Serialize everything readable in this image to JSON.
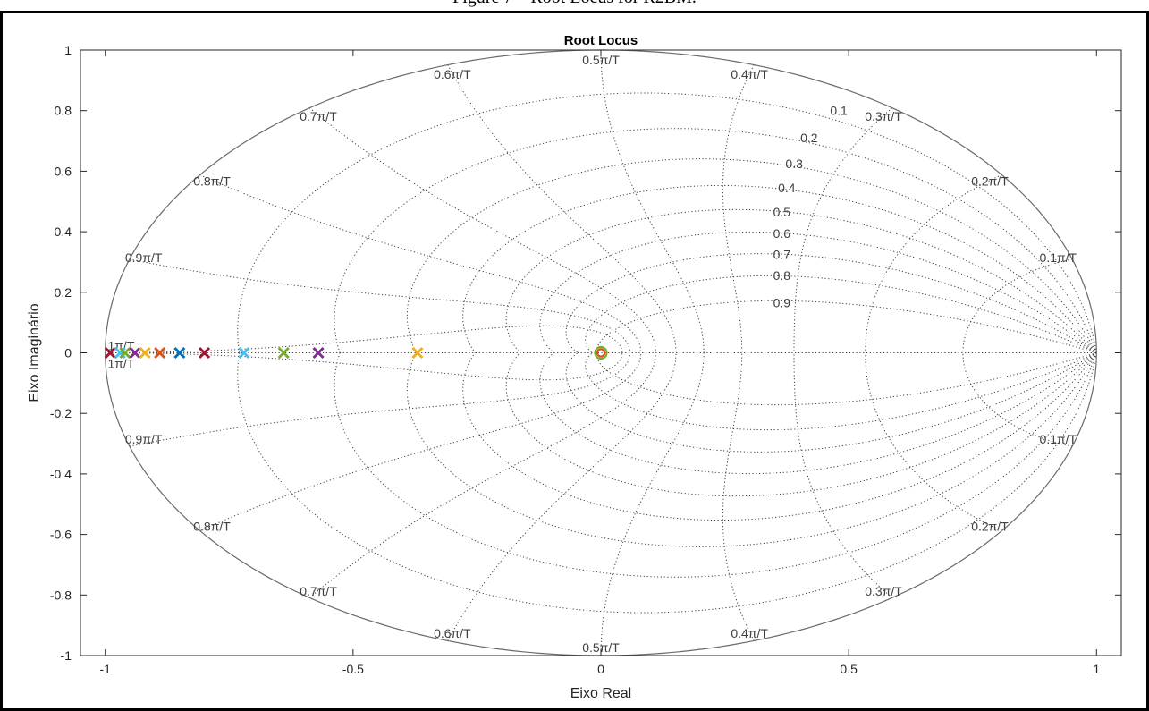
{
  "figure_caption": "Figure 7 – Root Locus for R2BM.",
  "chart_data": {
    "type": "scatter",
    "title": "Root Locus",
    "xlabel": "Eixo Real",
    "ylabel": "Eixo Imaginário",
    "xlim": [
      -1.05,
      1.05
    ],
    "ylim": [
      -1,
      1
    ],
    "xticks": [
      "-1",
      "-0.5",
      "0",
      "0.5",
      "1"
    ],
    "yticks": [
      "-1",
      "-0.8",
      "-0.6",
      "-0.4",
      "-0.2",
      "0",
      "0.2",
      "0.4",
      "0.6",
      "0.8",
      "1"
    ],
    "grid": "zgrid",
    "damping_values": [
      "0.1",
      "0.2",
      "0.3",
      "0.4",
      "0.5",
      "0.6",
      "0.7",
      "0.8",
      "0.9"
    ],
    "frequency_labels": [
      "0.1π/T",
      "0.2π/T",
      "0.3π/T",
      "0.4π/T",
      "0.5π/T",
      "0.6π/T",
      "0.7π/T",
      "0.8π/T",
      "0.9π/T",
      "1π/T"
    ],
    "poles": [
      {
        "x": -0.99,
        "color": "#A2142F"
      },
      {
        "x": -0.97,
        "color": "#4DBEEE"
      },
      {
        "x": -0.96,
        "color": "#77AC30"
      },
      {
        "x": -0.94,
        "color": "#7E2F8E"
      },
      {
        "x": -0.92,
        "color": "#EDB120"
      },
      {
        "x": -0.89,
        "color": "#D95319"
      },
      {
        "x": -0.85,
        "color": "#0072BD"
      },
      {
        "x": -0.8,
        "color": "#A2142F"
      },
      {
        "x": -0.72,
        "color": "#4DBEEE"
      },
      {
        "x": -0.64,
        "color": "#77AC30"
      },
      {
        "x": -0.57,
        "color": "#7E2F8E"
      },
      {
        "x": -0.37,
        "color": "#EDB120"
      }
    ],
    "zeros": [
      {
        "x": 0,
        "color": "#77AC30"
      },
      {
        "x": 0,
        "color": "#D95319"
      }
    ]
  }
}
